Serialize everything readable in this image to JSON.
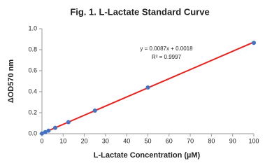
{
  "chart_data": {
    "type": "scatter",
    "title": "Fig. 1. L-Lactate Standard Curve",
    "x_label": "L-Lactate Concentration (µM)",
    "y_label": "ΔOD570 nm",
    "x": [
      0,
      1.5625,
      3.125,
      6.25,
      12.5,
      25,
      50,
      100
    ],
    "series": [
      {
        "color": "#4472c4",
        "values": [
          0.002,
          0.015,
          0.029,
          0.056,
          0.11,
          0.22,
          0.44,
          0.865
        ]
      }
    ],
    "trendline": {
      "slope": 0.0087,
      "intercept": 0.0018,
      "color": "#e8231f"
    },
    "annotations": [
      "y = 0.0087x + 0.0018",
      "R² = 0.9997"
    ],
    "xlim": [
      0,
      100
    ],
    "xticks": [
      0,
      10,
      20,
      30,
      40,
      50,
      60,
      70,
      80,
      90,
      100
    ],
    "ylim": [
      0,
      1
    ],
    "yticks": [
      {
        "value": 0,
        "label": "0.0"
      },
      0.2,
      0.4,
      0.6,
      0.8,
      {
        "value": 1,
        "label": "1.0"
      }
    ],
    "grid": false
  }
}
